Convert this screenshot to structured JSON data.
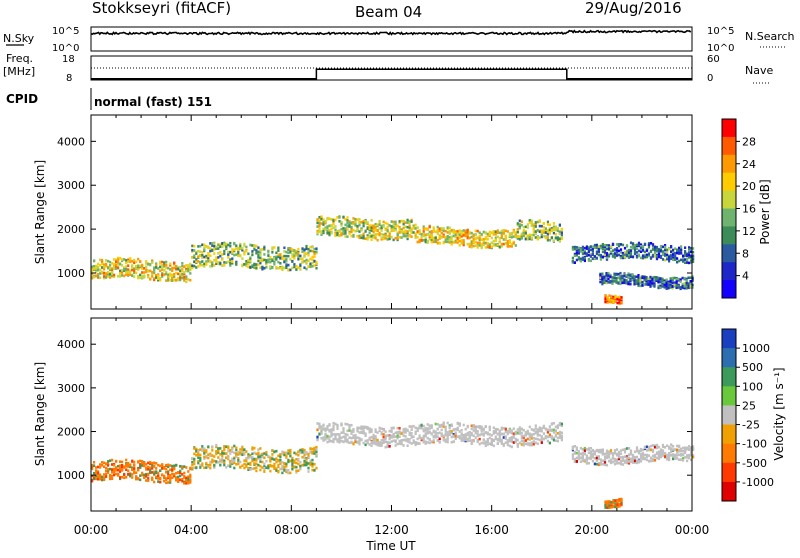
{
  "header": {
    "station": "Stokkseyri (fitACF)",
    "beam": "Beam 04",
    "date": "29/Aug/2016"
  },
  "noise_panel": {
    "left_label": "N.Sky",
    "right_label": "N.Search",
    "left_ticks": [
      "10^5",
      "10^0"
    ],
    "right_ticks": [
      "10^5",
      "10^0"
    ]
  },
  "freq_panel": {
    "left_label_line1": "Freq.",
    "left_label_line2": "[MHz]",
    "right_label": "Nave",
    "left_ticks": [
      "18",
      "8"
    ],
    "right_ticks": [
      "60",
      "0"
    ]
  },
  "cpid": {
    "label": "CPID",
    "value": "normal (fast) 151"
  },
  "power_panel": {
    "ylabel": "Slant Range [km]",
    "yticks": [
      "4000",
      "3000",
      "2000",
      "1000"
    ],
    "colorbar_label": "Power [dB]",
    "colorbar_ticks": [
      "28",
      "24",
      "20",
      "16",
      "12",
      "8",
      "4"
    ],
    "colorbar_colors": [
      "#ff0000",
      "#ff5a00",
      "#ff9900",
      "#ffcc00",
      "#c8d63c",
      "#6eb46e",
      "#3c8c5a",
      "#2a5aa0",
      "#1e28c8",
      "#1400ff"
    ]
  },
  "velocity_panel": {
    "ylabel": "Slant Range [km]",
    "yticks": [
      "4000",
      "3000",
      "2000",
      "1000"
    ],
    "colorbar_label": "Velocity [m s⁻¹]",
    "colorbar_ticks": [
      "1000",
      "500",
      "100",
      "25",
      "-25",
      "-100",
      "-500",
      "-1000"
    ],
    "colorbar_colors": [
      "#1a3fbf",
      "#2c6eb0",
      "#3c9a5a",
      "#6ac83c",
      "#c0c0c0",
      "#f0a000",
      "#ff7a00",
      "#ff3a00",
      "#e00000"
    ]
  },
  "xaxis": {
    "label": "Time UT",
    "ticks": [
      "00:00",
      "04:00",
      "08:00",
      "12:00",
      "16:00",
      "20:00",
      "00:00"
    ]
  },
  "chart_data": {
    "type": "heatmap",
    "title": "Stokkseyri (fitACF) Beam 04 29/Aug/2016",
    "xlabel": "Time UT",
    "ylabel": "Slant Range [km]",
    "xlim": [
      0,
      24
    ],
    "ylim": [
      180,
      4600
    ],
    "power_echo_bands": [
      {
        "t_start": 0.0,
        "t_end": 4.0,
        "range_center": 1100,
        "range_width": 320,
        "power_db": 20
      },
      {
        "t_start": 4.0,
        "t_end": 9.0,
        "range_center": 1400,
        "range_width": 380,
        "power_db": 16
      },
      {
        "t_start": 9.0,
        "t_end": 13.0,
        "range_center": 2050,
        "range_width": 320,
        "power_db": 18
      },
      {
        "t_start": 13.0,
        "t_end": 17.0,
        "range_center": 1850,
        "range_width": 280,
        "power_db": 20
      },
      {
        "t_start": 17.0,
        "t_end": 18.8,
        "range_center": 1950,
        "range_width": 320,
        "power_db": 16
      },
      {
        "t_start": 19.2,
        "t_end": 24.0,
        "range_center": 1500,
        "range_width": 260,
        "power_db": 10
      },
      {
        "t_start": 20.3,
        "t_end": 24.0,
        "range_center": 850,
        "range_width": 180,
        "power_db": 10
      },
      {
        "t_start": 20.5,
        "t_end": 21.2,
        "range_center": 400,
        "range_width": 120,
        "power_db": 26
      }
    ],
    "velocity_echo_bands": [
      {
        "t_start": 0.0,
        "t_end": 4.0,
        "range_center": 1100,
        "range_width": 320,
        "velocity_ms": -500
      },
      {
        "t_start": 4.0,
        "t_end": 9.0,
        "range_center": 1400,
        "range_width": 380,
        "velocity_ms": -100
      },
      {
        "t_start": 9.0,
        "t_end": 18.8,
        "range_center": 1950,
        "range_width": 320,
        "velocity_ms": 0
      },
      {
        "t_start": 19.2,
        "t_end": 24.0,
        "range_center": 1500,
        "range_width": 260,
        "velocity_ms": 0
      },
      {
        "t_start": 20.5,
        "t_end": 21.2,
        "range_center": 400,
        "range_width": 120,
        "velocity_ms": -500
      }
    ],
    "frequency_steps": [
      {
        "t_start": 0.0,
        "t_end": 9.0,
        "freq_mhz": 8.5
      },
      {
        "t_start": 9.0,
        "t_end": 19.0,
        "freq_mhz": 12.5
      },
      {
        "t_start": 19.0,
        "t_end": 24.0,
        "freq_mhz": 8.5
      }
    ],
    "nave_level": 30,
    "nsky_level_log10": 4.0
  }
}
